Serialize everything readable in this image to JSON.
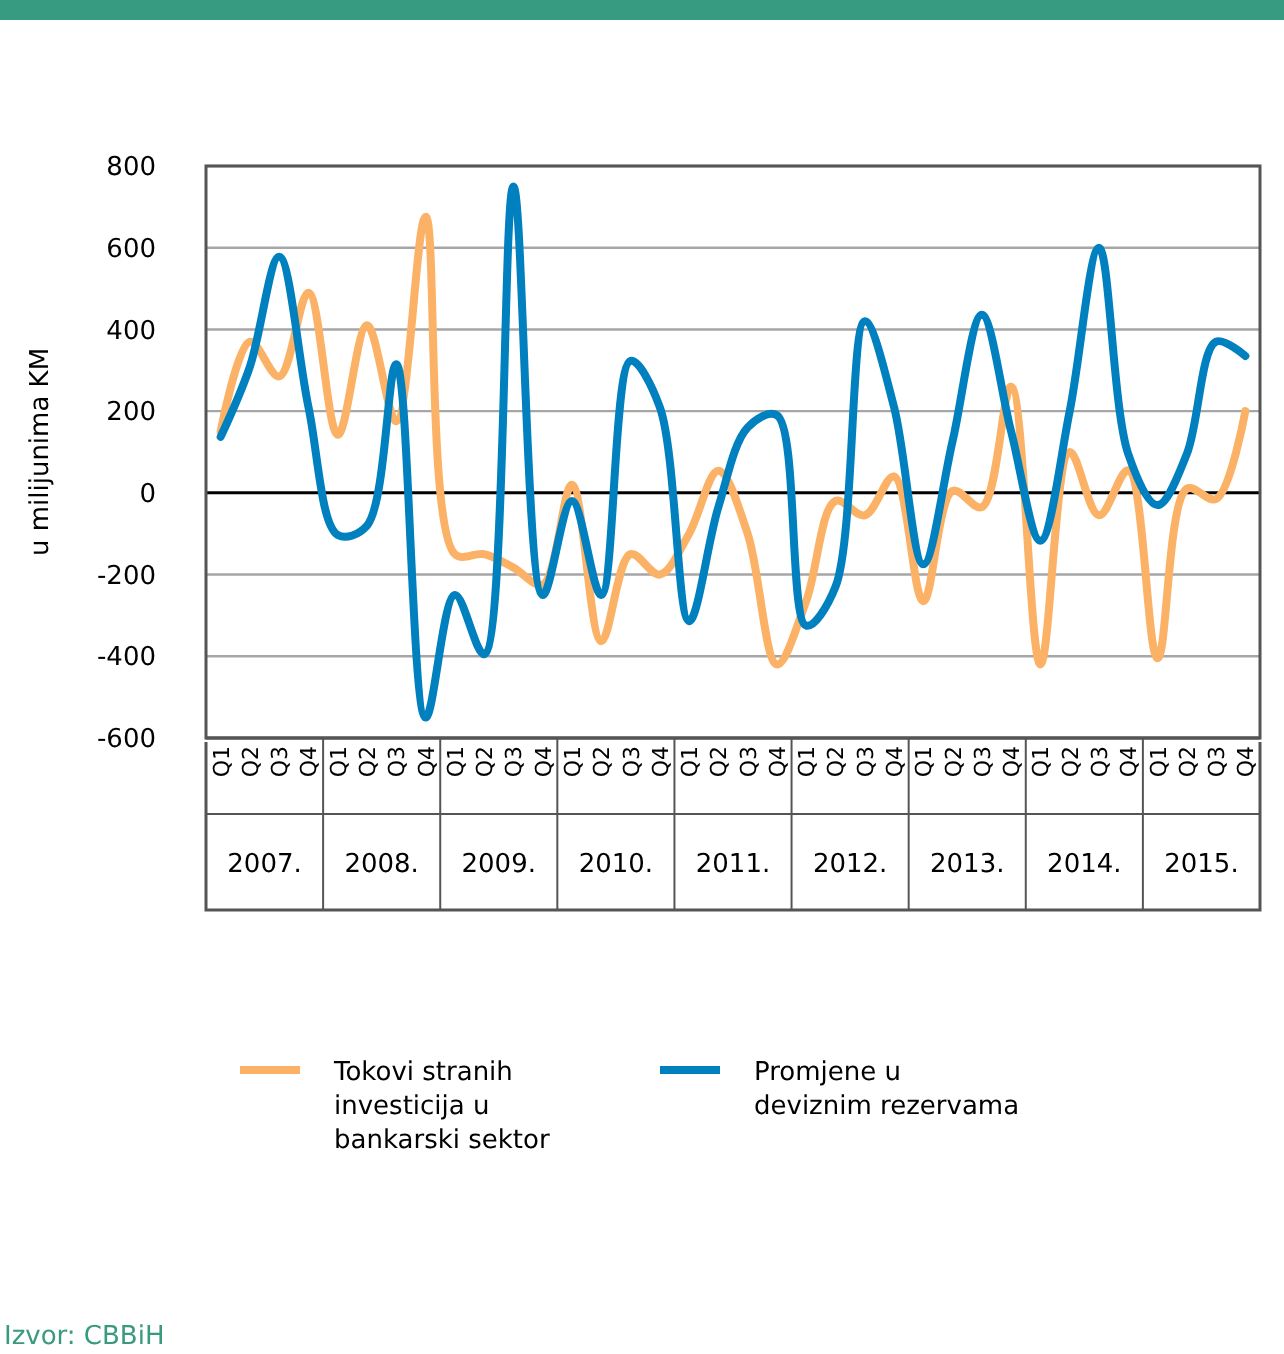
{
  "chart_data": {
    "type": "line",
    "ylabel": "u milijunima KM",
    "categories": [
      "Q1",
      "Q2",
      "Q3",
      "Q4",
      "Q1",
      "Q2",
      "Q3",
      "Q4",
      "Q1",
      "Q2",
      "Q3",
      "Q4",
      "Q1",
      "Q2",
      "Q3",
      "Q4",
      "Q1",
      "Q2",
      "Q3",
      "Q4",
      "Q1",
      "Q2",
      "Q3",
      "Q4",
      "Q1",
      "Q2",
      "Q3",
      "Q4",
      "Q1",
      "Q2",
      "Q3",
      "Q4",
      "Q1",
      "Q2",
      "Q3",
      "Q4"
    ],
    "series": [
      {
        "name": "Tokovi stranih investicija u bankarski sektor",
        "color": "#fbb266",
        "values": [
          150,
          370,
          285,
          490,
          142,
          410,
          175,
          676,
          -150,
          -150,
          -183,
          -225,
          20,
          -363,
          -150,
          -200,
          -100,
          54,
          -100,
          -420,
          -265,
          -20,
          -55,
          40,
          -265,
          5,
          -35,
          260,
          -420,
          100,
          -55,
          55,
          -405,
          10,
          -15,
          200
        ]
      },
      {
        "name": "Promjene u deviznim rezervama",
        "color": "#0080be",
        "values": [
          137,
          309,
          578,
          210,
          -103,
          -80,
          315,
          -550,
          -250,
          -395,
          750,
          -250,
          -20,
          -250,
          323,
          210,
          -314,
          -35,
          160,
          190,
          -325,
          -230,
          420,
          210,
          -175,
          127,
          436,
          150,
          -117,
          200,
          600,
          95,
          -30,
          95,
          370,
          335
        ]
      }
    ],
    "ylim": [
      -600,
      800
    ],
    "yticks": [
      -600,
      -400,
      -200,
      0,
      200,
      400,
      600,
      800
    ],
    "grid": "y",
    "legend": "bottom",
    "line_style": "solid",
    "marker": "none",
    "annotations": [
      "2007.",
      "2008.",
      "2009.",
      "2010.",
      "2011.",
      "2012.",
      "2013.",
      "2014.",
      "2015.",
      "Izvor: CBBiH"
    ]
  }
}
